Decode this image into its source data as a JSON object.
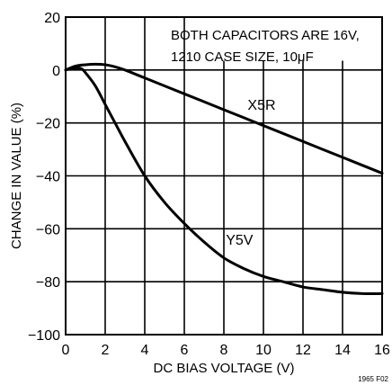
{
  "chart_data": {
    "type": "line",
    "title": "",
    "xlabel": "DC BIAS VOLTAGE (V)",
    "ylabel": "CHANGE IN VALUE (%)",
    "xlim": [
      0,
      16
    ],
    "ylim": [
      -100,
      20
    ],
    "x_ticks": [
      "0",
      "2",
      "4",
      "6",
      "8",
      "10",
      "12",
      "14",
      "16"
    ],
    "y_ticks": [
      "20",
      "0",
      "−20",
      "−40",
      "−60",
      "−80",
      "−100"
    ],
    "grid": true,
    "annotation": {
      "line1": "BOTH CAPACITORS ARE 16V,",
      "line2_prefix": "1210 CASE SIZE, 10",
      "line2_unit_mu": "μ",
      "line2_unit_f": "F"
    },
    "figure_id": "1965 F02",
    "series": [
      {
        "name": "X5R",
        "x": [
          0,
          0.5,
          1,
          1.5,
          2,
          2.5,
          3,
          4,
          6,
          8,
          10,
          12,
          14,
          16
        ],
        "y": [
          0,
          1.5,
          2,
          2.2,
          2,
          1.2,
          0,
          -3,
          -9,
          -15,
          -21,
          -27,
          -33,
          -39
        ]
      },
      {
        "name": "Y5V",
        "x": [
          0,
          0.5,
          0.8,
          1,
          1.5,
          2,
          2.5,
          3,
          4,
          5,
          6,
          7,
          8,
          9,
          10,
          11,
          12,
          13,
          14,
          15,
          16
        ],
        "y": [
          0,
          0.8,
          0.5,
          -1,
          -6,
          -13,
          -20,
          -27,
          -40,
          -50,
          -58,
          -65,
          -71,
          -75,
          -78,
          -80,
          -82,
          -83,
          -84,
          -84.5,
          -84.5
        ]
      }
    ]
  }
}
